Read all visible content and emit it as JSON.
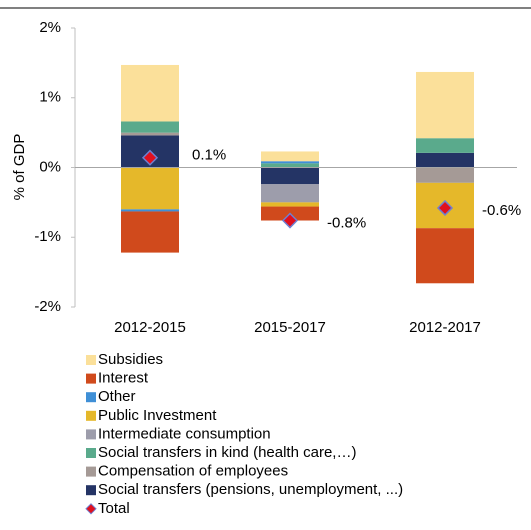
{
  "chart_data": {
    "type": "stacked-bar",
    "y_label": "% of GDP",
    "categories": [
      "2012-2015",
      "2015-2017",
      "2012-2017"
    ],
    "series": [
      {
        "name": "Subsidies",
        "color": "#fbe09a",
        "values": [
          0.81,
          0.14,
          0.95
        ]
      },
      {
        "name": "Interest",
        "color": "#d04a1c",
        "values": [
          -0.59,
          -0.2,
          -0.79
        ]
      },
      {
        "name": "Other",
        "color": "#3f8fd6",
        "values": [
          -0.03,
          0.03,
          0
        ]
      },
      {
        "name": "Public Investment",
        "color": "#e5b82a",
        "values": [
          -0.6,
          -0.06,
          -0.65
        ]
      },
      {
        "name": "Intermediate consumption",
        "color": "#9d9dab",
        "values": [
          0,
          -0.26,
          0
        ]
      },
      {
        "name": "Social transfers in kind (health care,…)",
        "color": "#5aaa8c",
        "values": [
          0.16,
          0.06,
          0.21
        ]
      },
      {
        "name": "Compensation of employees",
        "color": "#a59a96",
        "values": [
          0.04,
          0,
          -0.22
        ]
      },
      {
        "name": "Social transfers (pensions, unemployment, ...)",
        "color": "#243465",
        "values": [
          0.46,
          -0.24,
          0.21
        ]
      }
    ],
    "total": {
      "name": "Total",
      "color": "#e0101e",
      "values": [
        0.14,
        -0.76,
        -0.58
      ],
      "value_labels": [
        "0.1%",
        "-0.8%",
        "-0.6%"
      ]
    },
    "ylim": [
      -2,
      2
    ],
    "yticks": [
      {
        "value": -2,
        "label": "-2%"
      },
      {
        "value": -1,
        "label": "-1%"
      },
      {
        "value": 0,
        "label": "0%"
      },
      {
        "value": 1,
        "label": "1%"
      },
      {
        "value": 2,
        "label": "2%"
      }
    ]
  }
}
